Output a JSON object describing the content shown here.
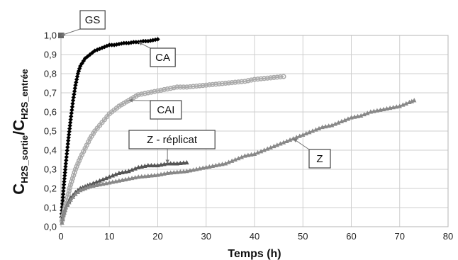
{
  "chart_data": {
    "type": "scatter",
    "title": "",
    "xlabel": "Temps (h)",
    "ylabel": {
      "c1": "C",
      "sub1": "H2S_sortie",
      "slash": "/",
      "c2": "C",
      "sub2": "H2S_entrée"
    },
    "xlim": [
      0,
      80
    ],
    "ylim": [
      0.0,
      1.0
    ],
    "x_ticks": [
      "0",
      "10",
      "20",
      "30",
      "40",
      "50",
      "60",
      "70",
      "80"
    ],
    "y_ticks": [
      "0,0",
      "0,1",
      "0,2",
      "0,3",
      "0,4",
      "0,5",
      "0,6",
      "0,7",
      "0,8",
      "0,9",
      "1,0"
    ],
    "grid": true,
    "series": [
      {
        "name": "GS",
        "color": "#666666",
        "marker": "square",
        "points": [
          [
            0.0,
            1.0
          ]
        ]
      },
      {
        "name": "CA",
        "color": "#000000",
        "marker": "diamond",
        "points": [
          [
            0.1,
            0.05
          ],
          [
            0.3,
            0.12
          ],
          [
            0.6,
            0.22
          ],
          [
            1.0,
            0.33
          ],
          [
            1.5,
            0.45
          ],
          [
            2.0,
            0.56
          ],
          [
            2.5,
            0.66
          ],
          [
            3.0,
            0.74
          ],
          [
            3.5,
            0.8
          ],
          [
            4.0,
            0.84
          ],
          [
            5.0,
            0.88
          ],
          [
            6.0,
            0.9
          ],
          [
            7.0,
            0.92
          ],
          [
            8.0,
            0.93
          ],
          [
            9.0,
            0.94
          ],
          [
            10.0,
            0.95
          ],
          [
            11.0,
            0.95
          ],
          [
            12.0,
            0.955
          ],
          [
            13.0,
            0.96
          ],
          [
            14.0,
            0.96
          ],
          [
            15.0,
            0.965
          ],
          [
            16.0,
            0.965
          ],
          [
            17.0,
            0.97
          ],
          [
            18.0,
            0.97
          ],
          [
            19.0,
            0.975
          ],
          [
            20.0,
            0.98
          ]
        ]
      },
      {
        "name": "CAI",
        "color": "#aaaaaa",
        "marker": "circle",
        "points": [
          [
            0.2,
            0.03
          ],
          [
            1.0,
            0.12
          ],
          [
            2.0,
            0.22
          ],
          [
            3.0,
            0.3
          ],
          [
            4.0,
            0.36
          ],
          [
            5.0,
            0.41
          ],
          [
            6.0,
            0.46
          ],
          [
            7.0,
            0.5
          ],
          [
            8.0,
            0.53
          ],
          [
            9.0,
            0.56
          ],
          [
            10.0,
            0.59
          ],
          [
            12.0,
            0.63
          ],
          [
            14.0,
            0.66
          ],
          [
            16.0,
            0.69
          ],
          [
            18.0,
            0.7
          ],
          [
            20.0,
            0.71
          ],
          [
            22.0,
            0.72
          ],
          [
            24.0,
            0.73
          ],
          [
            26.0,
            0.73
          ],
          [
            28.0,
            0.735
          ],
          [
            30.0,
            0.74
          ],
          [
            32.0,
            0.745
          ],
          [
            34.0,
            0.75
          ],
          [
            36.0,
            0.755
          ],
          [
            38.0,
            0.76
          ],
          [
            40.0,
            0.77
          ],
          [
            42.0,
            0.775
          ],
          [
            44.0,
            0.78
          ],
          [
            46.0,
            0.785
          ]
        ]
      },
      {
        "name": "Z - réplicat",
        "color": "#555555",
        "marker": "triangle",
        "points": [
          [
            0.2,
            0.02
          ],
          [
            0.5,
            0.06
          ],
          [
            1.0,
            0.1
          ],
          [
            2.0,
            0.15
          ],
          [
            3.0,
            0.18
          ],
          [
            4.0,
            0.2
          ],
          [
            5.0,
            0.21
          ],
          [
            6.0,
            0.22
          ],
          [
            8.0,
            0.24
          ],
          [
            10.0,
            0.26
          ],
          [
            12.0,
            0.28
          ],
          [
            14.0,
            0.29
          ],
          [
            16.0,
            0.31
          ],
          [
            18.0,
            0.32
          ],
          [
            20.0,
            0.32
          ],
          [
            22.0,
            0.33
          ],
          [
            24.0,
            0.33
          ],
          [
            26.0,
            0.335
          ]
        ]
      },
      {
        "name": "Z",
        "color": "#888888",
        "marker": "triangle",
        "points": [
          [
            0.2,
            0.02
          ],
          [
            0.5,
            0.06
          ],
          [
            1.0,
            0.1
          ],
          [
            2.0,
            0.14
          ],
          [
            3.0,
            0.17
          ],
          [
            4.0,
            0.19
          ],
          [
            5.0,
            0.2
          ],
          [
            6.0,
            0.21
          ],
          [
            8.0,
            0.22
          ],
          [
            10.0,
            0.23
          ],
          [
            12.0,
            0.24
          ],
          [
            14.0,
            0.25
          ],
          [
            16.0,
            0.26
          ],
          [
            18.0,
            0.265
          ],
          [
            20.0,
            0.27
          ],
          [
            22.0,
            0.28
          ],
          [
            24.0,
            0.285
          ],
          [
            26.0,
            0.29
          ],
          [
            28.0,
            0.3
          ],
          [
            30.0,
            0.31
          ],
          [
            32.0,
            0.32
          ],
          [
            34.0,
            0.33
          ],
          [
            36.0,
            0.35
          ],
          [
            38.0,
            0.37
          ],
          [
            40.0,
            0.38
          ],
          [
            42.0,
            0.4
          ],
          [
            44.0,
            0.42
          ],
          [
            46.0,
            0.44
          ],
          [
            48.0,
            0.46
          ],
          [
            50.0,
            0.48
          ],
          [
            52.0,
            0.5
          ],
          [
            54.0,
            0.52
          ],
          [
            56.0,
            0.53
          ],
          [
            58.0,
            0.55
          ],
          [
            60.0,
            0.57
          ],
          [
            62.0,
            0.58
          ],
          [
            64.0,
            0.6
          ],
          [
            66.0,
            0.61
          ],
          [
            68.0,
            0.62
          ],
          [
            70.0,
            0.63
          ],
          [
            72.0,
            0.65
          ],
          [
            73.0,
            0.66
          ]
        ]
      }
    ],
    "annotations": [
      {
        "series": "GS",
        "text": "GS",
        "target": [
          0.0,
          1.0
        ]
      },
      {
        "series": "CA",
        "text": "CA",
        "target": [
          16.0,
          0.965
        ]
      },
      {
        "series": "CAI",
        "text": "CAI",
        "target": [
          14.0,
          0.66
        ]
      },
      {
        "series": "Z - réplicat",
        "text": "Z - réplicat",
        "target": [
          22.0,
          0.33
        ]
      },
      {
        "series": "Z",
        "text": "Z",
        "target": [
          48.0,
          0.46
        ]
      }
    ]
  }
}
